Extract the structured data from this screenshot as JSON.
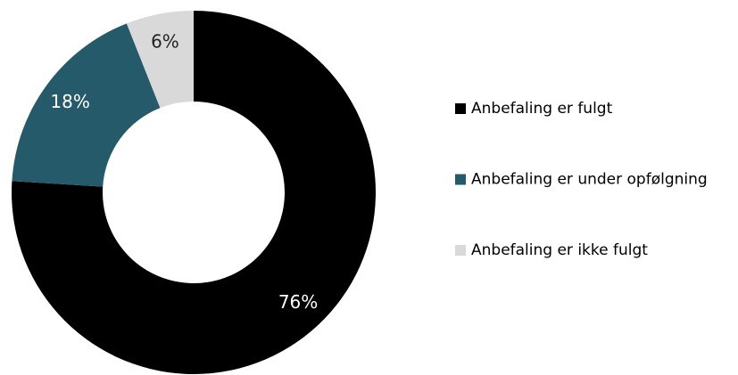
{
  "chart_data": {
    "type": "donut",
    "categories": [
      "Anbefaling er fulgt",
      "Anbefaling er under opfølgning",
      "Anbefaling er ikke fulgt"
    ],
    "values": [
      76,
      18,
      6
    ],
    "value_labels": [
      "76%",
      "18%",
      "6%"
    ],
    "colors": [
      "#000000",
      "#245a6a",
      "#d9d9d9"
    ],
    "legend": "right"
  }
}
